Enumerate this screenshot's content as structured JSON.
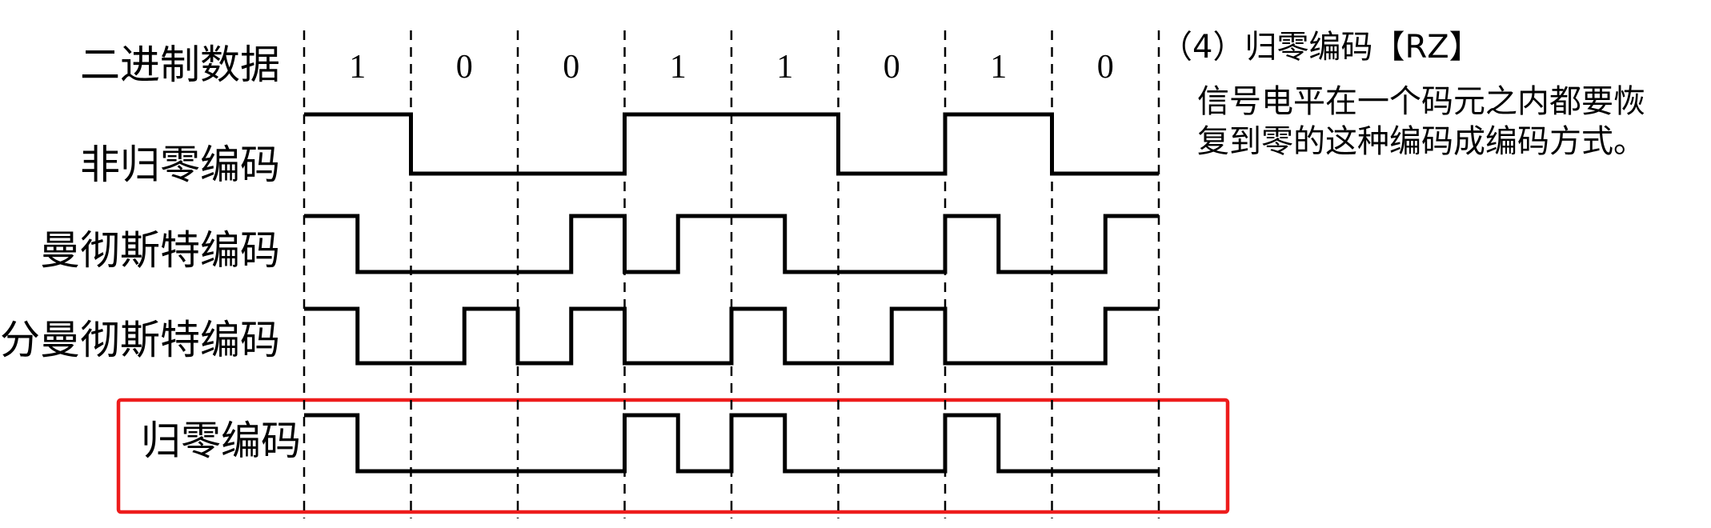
{
  "binary_data": {
    "label": "二进制数据",
    "bits": [
      "1",
      "0",
      "0",
      "1",
      "1",
      "0",
      "1",
      "0"
    ]
  },
  "rows": [
    {
      "id": "nrz",
      "label": "非归零编码",
      "levels": [
        [
          1,
          1
        ],
        [
          0,
          0
        ],
        [
          0,
          0
        ],
        [
          1,
          1
        ],
        [
          1,
          1
        ],
        [
          0,
          0
        ],
        [
          1,
          1
        ],
        [
          0,
          0
        ]
      ]
    },
    {
      "id": "manchester",
      "label": "曼彻斯特编码",
      "levels": [
        [
          1,
          0
        ],
        [
          0,
          0
        ],
        [
          0,
          1
        ],
        [
          0,
          1
        ],
        [
          1,
          0
        ],
        [
          0,
          0
        ],
        [
          1,
          0
        ],
        [
          0,
          1
        ]
      ]
    },
    {
      "id": "diff-manchester",
      "label": "差分曼彻斯特编码",
      "levels": [
        [
          1,
          0
        ],
        [
          0,
          1
        ],
        [
          0,
          1
        ],
        [
          0,
          0
        ],
        [
          1,
          0
        ],
        [
          0,
          1
        ],
        [
          0,
          0
        ],
        [
          0,
          1
        ]
      ]
    },
    {
      "id": "rz",
      "label": "归零编码",
      "levels": [
        [
          1,
          0
        ],
        [
          0,
          0
        ],
        [
          0,
          0
        ],
        [
          1,
          0
        ],
        [
          1,
          0
        ],
        [
          0,
          0
        ],
        [
          1,
          0
        ],
        [
          0,
          0
        ]
      ],
      "highlighted": true
    }
  ],
  "note": {
    "title": "（4）归零编码【RZ】",
    "line1": "信号电平在一个码元之内都要恢",
    "line2": "复到零的这种编码成编码方式。"
  },
  "colors": {
    "highlight_box": "#ee1c1c",
    "ink": "#000000"
  }
}
